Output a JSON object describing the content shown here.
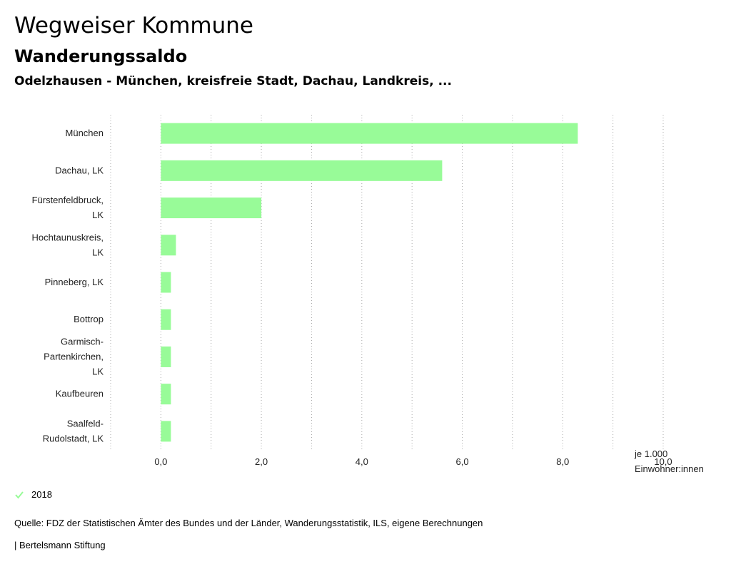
{
  "header": {
    "title": "Wegweiser Kommune",
    "subtitle": "Wanderungssaldo",
    "region": "Odelzhausen - München, kreisfreie Stadt, Dachau, Landkreis, ..."
  },
  "legend": {
    "label": "2018",
    "color": "#98fb98"
  },
  "footer": {
    "source": "Quelle: FDZ der Statistischen Ämter des Bundes und der Länder, Wanderungsstatistik, ILS, eigene Berechnungen",
    "brand": "| Bertelsmann Stiftung"
  },
  "chart_data": {
    "type": "bar",
    "orientation": "horizontal",
    "title": "Wanderungssaldo",
    "categories": [
      [
        "München"
      ],
      [
        "Dachau, LK"
      ],
      [
        "Fürstenfeldbruck,",
        "LK"
      ],
      [
        "Hochtaunuskreis,",
        "LK"
      ],
      [
        "Pinneberg, LK"
      ],
      [
        "Bottrop"
      ],
      [
        "Garmisch-",
        "Partenkirchen,",
        "LK"
      ],
      [
        "Kaufbeuren"
      ],
      [
        "Saalfeld-",
        "Rudolstadt, LK"
      ]
    ],
    "series": [
      {
        "name": "2018",
        "color": "#98fb98",
        "values": [
          8.3,
          5.6,
          2.0,
          0.3,
          0.2,
          0.2,
          0.2,
          0.2,
          0.2
        ]
      }
    ],
    "xlim": [
      -1,
      10
    ],
    "xticks": [
      0,
      2,
      4,
      6,
      8,
      10
    ],
    "xtick_labels": [
      "0,0",
      "2,0",
      "4,0",
      "6,0",
      "8,0",
      "10,0"
    ],
    "unit_label": [
      "je 1.000",
      "Einwohner:innen"
    ],
    "grid": true
  }
}
